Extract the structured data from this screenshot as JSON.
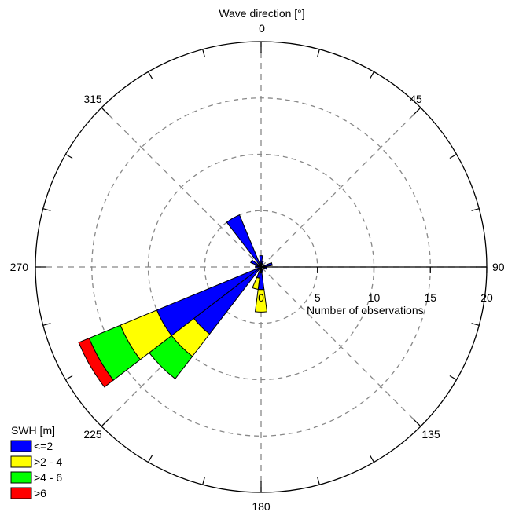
{
  "chart_data": {
    "type": "windrose",
    "title": "Wave direction [°]",
    "radial_label": "Number of observations",
    "radial_ticks": [
      0,
      5,
      10,
      15,
      20
    ],
    "radial_max": 20,
    "angle_labels": [
      {
        "angle": 0,
        "text": "0"
      },
      {
        "angle": 45,
        "text": "45"
      },
      {
        "angle": 90,
        "text": "90"
      },
      {
        "angle": 135,
        "text": "135"
      },
      {
        "angle": 180,
        "text": "180"
      },
      {
        "angle": 225,
        "text": "225"
      },
      {
        "angle": 270,
        "text": "270"
      },
      {
        "angle": 315,
        "text": "315"
      }
    ],
    "sector_width_deg": 15,
    "legend": {
      "title": "SWH [m]",
      "placement": "bottom-left",
      "entries": [
        {
          "label": "<=2",
          "color": "#0000ff"
        },
        {
          "label": ">2 - 4",
          "color": "#ffff00"
        },
        {
          "label": ">4 - 6",
          "color": "#00ff00"
        },
        {
          "label": ">6",
          "color": "#ff0000"
        }
      ]
    },
    "sectors": [
      {
        "direction": 0,
        "counts": [
          1,
          0,
          0,
          0
        ]
      },
      {
        "direction": 15,
        "counts": [
          0.5,
          0,
          0,
          0
        ]
      },
      {
        "direction": 75,
        "counts": [
          1,
          0,
          0,
          0
        ]
      },
      {
        "direction": 90,
        "counts": [
          0.5,
          0,
          0,
          0
        ]
      },
      {
        "direction": 105,
        "counts": [
          0.5,
          0,
          0,
          0
        ]
      },
      {
        "direction": 165,
        "counts": [
          0.5,
          0,
          0,
          0
        ]
      },
      {
        "direction": 180,
        "counts": [
          2,
          2,
          0,
          0
        ]
      },
      {
        "direction": 195,
        "counts": [
          1,
          1,
          0,
          0
        ]
      },
      {
        "direction": 225,
        "counts": [
          7.5,
          2.5,
          2.5,
          0
        ]
      },
      {
        "direction": 240,
        "counts": [
          10,
          3.5,
          3,
          1
        ]
      },
      {
        "direction": 270,
        "counts": [
          0.5,
          0,
          0,
          0
        ]
      },
      {
        "direction": 285,
        "counts": [
          0.5,
          0,
          0,
          0
        ]
      },
      {
        "direction": 300,
        "counts": [
          1,
          0,
          0,
          0
        ]
      },
      {
        "direction": 330,
        "counts": [
          5,
          0,
          0,
          0
        ]
      }
    ]
  }
}
